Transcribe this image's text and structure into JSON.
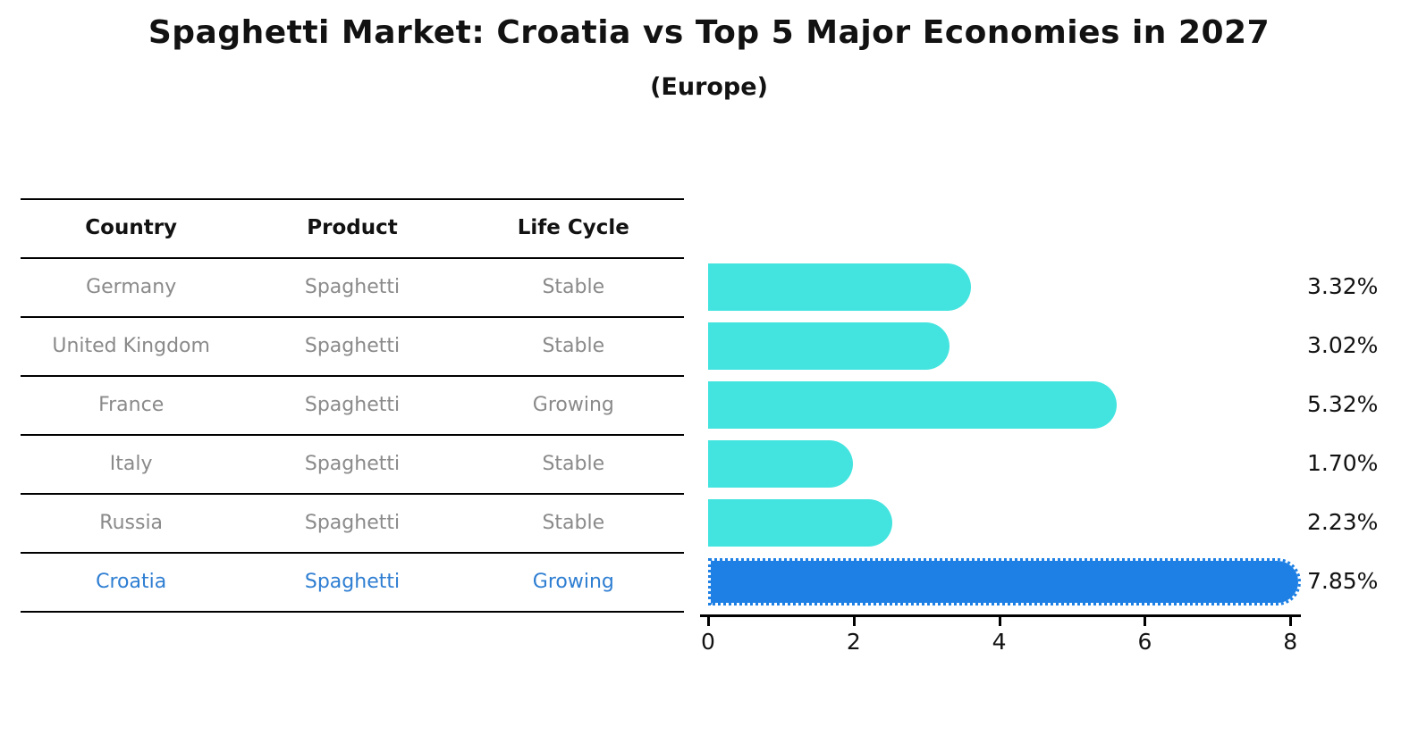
{
  "title": "Spaghetti Market: Croatia vs Top 5 Major Economies in 2027",
  "subtitle": "(Europe)",
  "table": {
    "headers": [
      "Country",
      "Product",
      "Life Cycle"
    ],
    "rows": [
      {
        "country": "Germany",
        "product": "Spaghetti",
        "life_cycle": "Stable",
        "highlight": false
      },
      {
        "country": "United Kingdom",
        "product": "Spaghetti",
        "life_cycle": "Stable",
        "highlight": false
      },
      {
        "country": "France",
        "product": "Spaghetti",
        "life_cycle": "Growing",
        "highlight": false
      },
      {
        "country": "Italy",
        "product": "Spaghetti",
        "life_cycle": "Stable",
        "highlight": false
      },
      {
        "country": "Russia",
        "product": "Spaghetti",
        "life_cycle": "Stable",
        "highlight": false
      },
      {
        "country": "Croatia",
        "product": "Spaghetti",
        "life_cycle": "Growing",
        "highlight": true
      }
    ]
  },
  "chart_data": {
    "type": "bar",
    "orientation": "horizontal",
    "title": "Spaghetti Market: Croatia vs Top 5 Major Economies in 2027 (Europe)",
    "categories": [
      "Germany",
      "United Kingdom",
      "France",
      "Italy",
      "Russia",
      "Croatia"
    ],
    "values": [
      3.32,
      3.02,
      5.32,
      1.7,
      2.23,
      7.85
    ],
    "value_labels": [
      "3.32%",
      "3.02%",
      "5.32%",
      "1.70%",
      "2.23%",
      "7.85%"
    ],
    "unit": "%",
    "xlabel": "",
    "ylabel": "",
    "xlim": [
      0,
      8.2
    ],
    "xticks": [
      0,
      2,
      4,
      6,
      8
    ],
    "xtick_labels": [
      "0",
      "2",
      "4",
      "6",
      "8"
    ],
    "grid": false,
    "legend": false,
    "highlight_index": 5
  },
  "colors": {
    "bar": "#43e4df",
    "highlight_bar": "#1e80e4",
    "highlight_text": "#2e7ed2",
    "text": "#121212",
    "muted_text": "#8a8a8a",
    "line": "#000000",
    "background": "#ffffff"
  }
}
